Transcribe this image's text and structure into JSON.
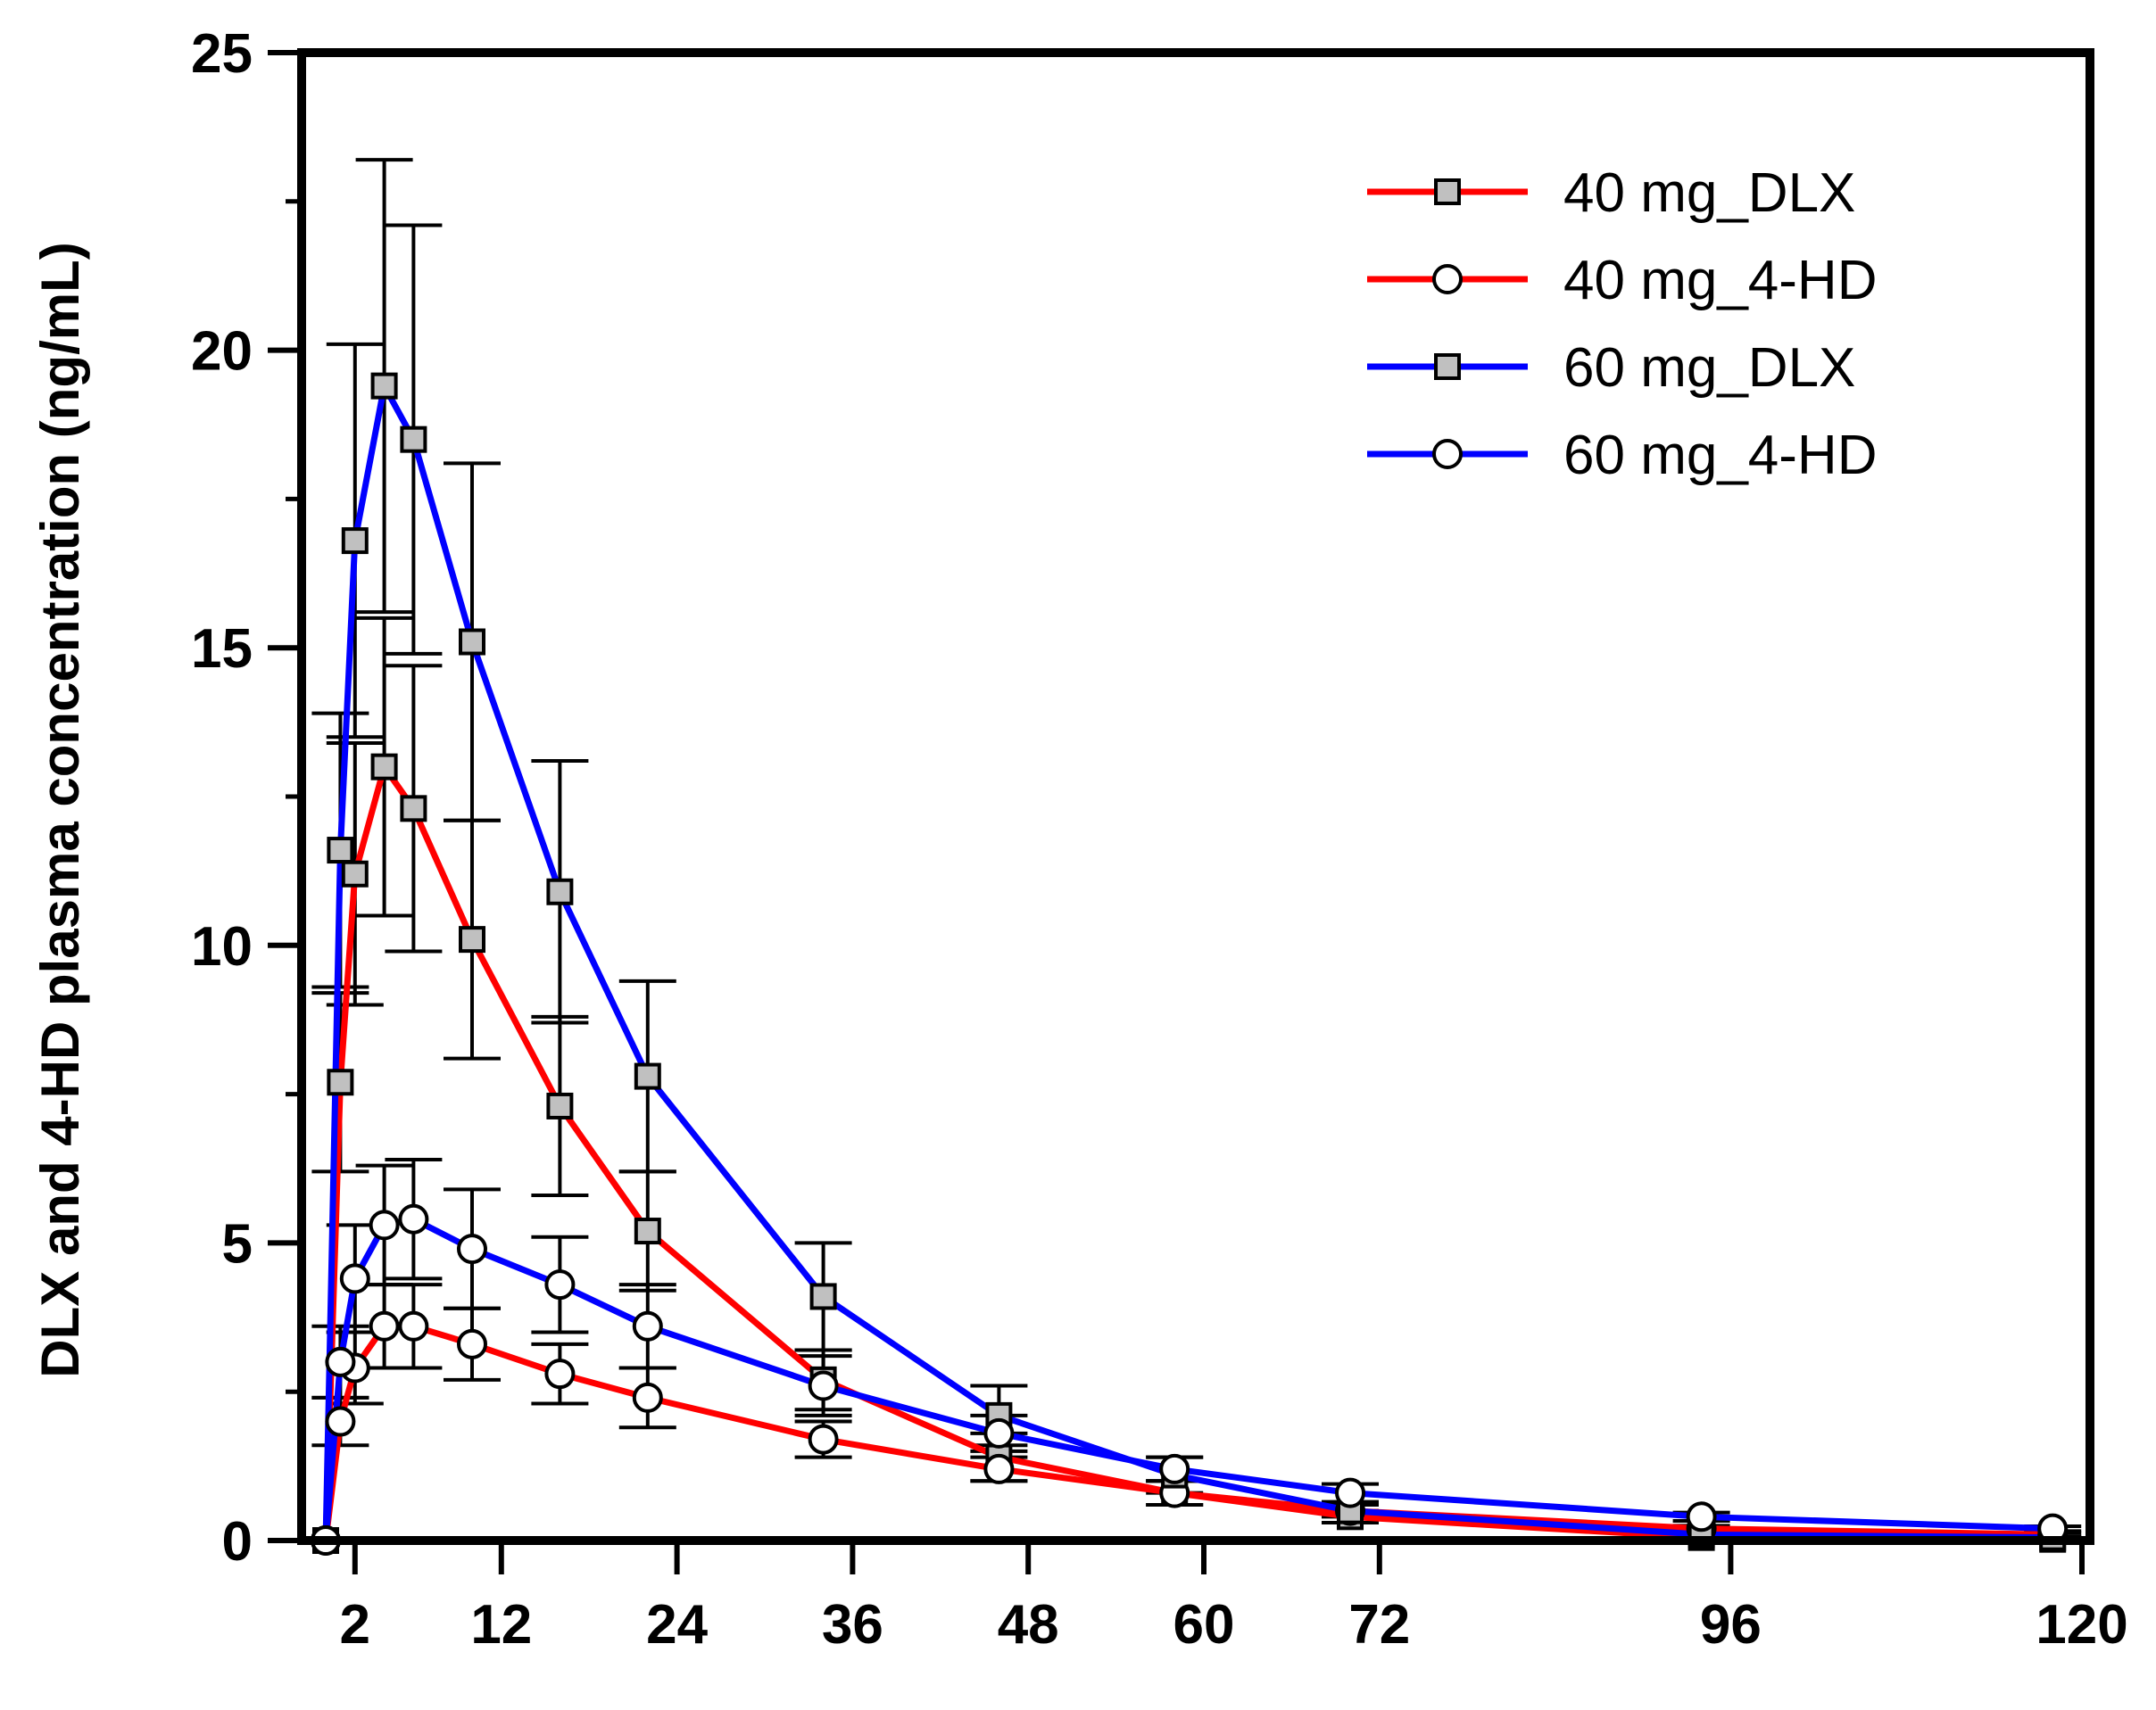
{
  "chart_data": {
    "type": "line",
    "title": "",
    "xlabel": "",
    "ylabel": "DLX and 4-HD plasma concentration (ng/mL)",
    "xlim": [
      0,
      120
    ],
    "ylim": [
      0,
      25
    ],
    "x_ticks": [
      2,
      12,
      24,
      36,
      48,
      60,
      72,
      96,
      120
    ],
    "y_ticks": [
      0,
      5,
      10,
      15,
      20,
      25
    ],
    "grid": false,
    "legend_position": "top-right",
    "series": [
      {
        "name": "40 mg_DLX",
        "color": "#ff0000",
        "marker": "square",
        "marker_fill": "#c0c0c0",
        "x": [
          0,
          1,
          2,
          4,
          6,
          10,
          16,
          22,
          34,
          46,
          58,
          70,
          94,
          118
        ],
        "y": [
          0,
          7.7,
          11.2,
          13.0,
          12.3,
          10.1,
          7.3,
          5.2,
          2.7,
          1.4,
          0.8,
          0.4,
          0.05,
          0.02
        ],
        "err": [
          0,
          1.5,
          2.2,
          2.5,
          2.4,
          2.0,
          1.5,
          1.0,
          0.5,
          0.4,
          0.2,
          0.1,
          0.02,
          0.01
        ]
      },
      {
        "name": "40 mg_4-HD",
        "color": "#ff0000",
        "marker": "circle",
        "marker_fill": "#ffffff",
        "x": [
          0,
          1,
          2,
          4,
          6,
          10,
          16,
          22,
          34,
          46,
          58,
          70,
          94,
          118
        ],
        "y": [
          0,
          2.0,
          2.9,
          3.6,
          3.6,
          3.3,
          2.8,
          2.4,
          1.7,
          1.2,
          0.8,
          0.5,
          0.2,
          0.1
        ],
        "err": [
          0,
          0.4,
          0.6,
          0.7,
          0.7,
          0.6,
          0.5,
          0.5,
          0.3,
          0.2,
          0.2,
          0.1,
          0.05,
          0.03
        ]
      },
      {
        "name": "60 mg_DLX",
        "color": "#0000ff",
        "marker": "square",
        "marker_fill": "#c0c0c0",
        "x": [
          0,
          1,
          2,
          4,
          6,
          10,
          16,
          22,
          34,
          46,
          58,
          70,
          94,
          118
        ],
        "y": [
          0,
          11.6,
          16.8,
          19.4,
          18.5,
          15.1,
          10.9,
          7.8,
          4.1,
          2.1,
          1.1,
          0.5,
          0.1,
          0.05
        ],
        "err": [
          0,
          2.3,
          3.3,
          3.8,
          3.6,
          3.0,
          2.2,
          1.6,
          0.9,
          0.5,
          0.3,
          0.1,
          0.03,
          0.02
        ]
      },
      {
        "name": "60 mg_4-HD",
        "color": "#0000ff",
        "marker": "circle",
        "marker_fill": "#ffffff",
        "x": [
          0,
          1,
          2,
          4,
          6,
          10,
          16,
          22,
          34,
          46,
          58,
          70,
          94,
          118
        ],
        "y": [
          0,
          3.0,
          4.4,
          5.3,
          5.4,
          4.9,
          4.3,
          3.6,
          2.6,
          1.8,
          1.2,
          0.8,
          0.4,
          0.2
        ],
        "err": [
          0,
          0.6,
          0.9,
          1.0,
          1.0,
          1.0,
          0.8,
          0.7,
          0.5,
          0.3,
          0.2,
          0.15,
          0.07,
          0.04
        ]
      }
    ]
  }
}
